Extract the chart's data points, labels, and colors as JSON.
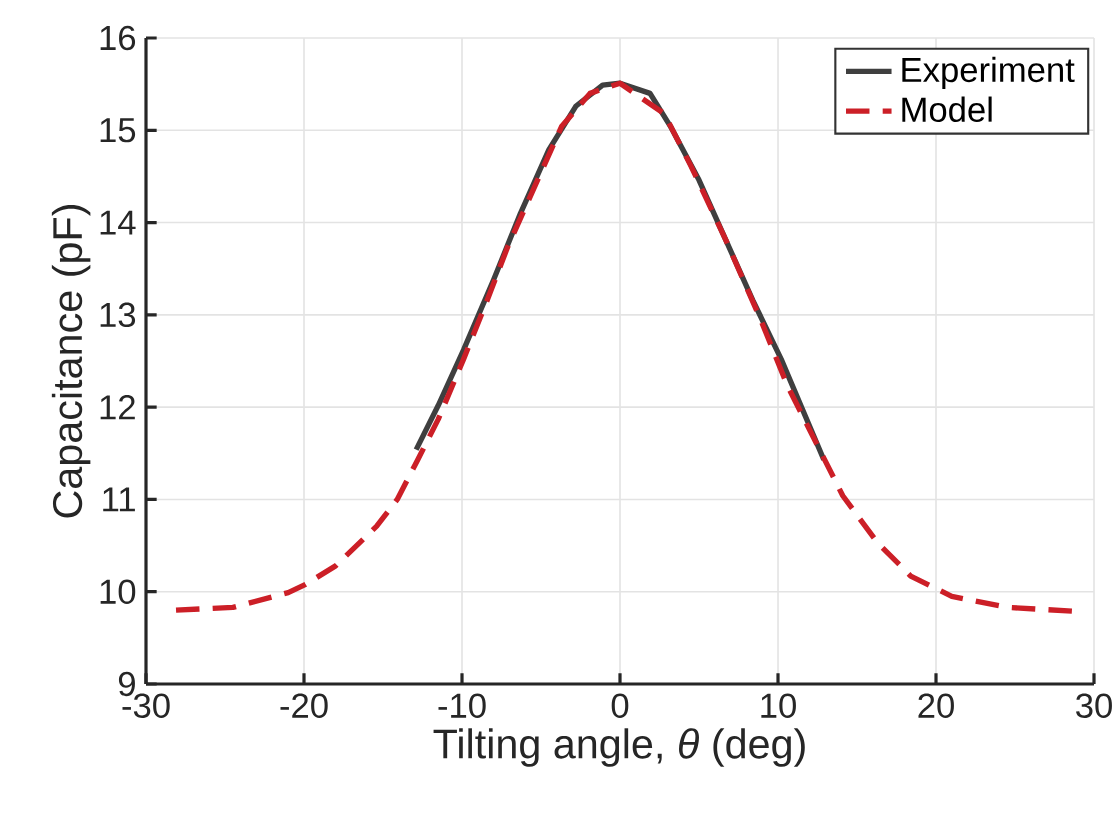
{
  "chart_data": {
    "type": "line",
    "xlabel": "Tilting angle, *θ* (deg)",
    "ylabel": "Capacitance (pF)",
    "xlim": [
      -30,
      30
    ],
    "xticks": [
      -30,
      -20,
      -10,
      0,
      10,
      20,
      30
    ],
    "ylim": [
      9,
      16
    ],
    "yticks": [
      9,
      10,
      11,
      12,
      13,
      14,
      15,
      16
    ],
    "grid": true,
    "legend": "top right",
    "series": [
      {
        "name": "Experiment",
        "color": "#3f3f3f",
        "line_style": "solid",
        "x": [
          -12.9,
          -11.5,
          -9.9,
          -8.0,
          -6.3,
          -4.5,
          -2.8,
          -1.1,
          0,
          1.9,
          3.2,
          5.0,
          6.7,
          8.4,
          10.2,
          12.9
        ],
        "values": [
          11.54,
          12.02,
          12.62,
          13.38,
          14.1,
          14.79,
          15.26,
          15.49,
          15.51,
          15.4,
          15.04,
          14.46,
          13.81,
          13.16,
          12.52,
          11.43
        ]
      },
      {
        "name": "Model",
        "color": "#cc1f27",
        "line_style": "dashed",
        "x": [
          -28.1,
          -24.5,
          -21,
          -19.9,
          -18,
          -15.4,
          -14.1,
          -12.8,
          -11.5,
          -9.9,
          -8.4,
          -7.1,
          -5.4,
          -3.7,
          -1.9,
          0,
          2.8,
          4.5,
          6.7,
          8.9,
          10.6,
          14.1,
          16.3,
          18.4,
          21.0,
          24.5,
          28.6
        ],
        "values": [
          9.8,
          9.83,
          9.99,
          10.08,
          10.28,
          10.71,
          11.0,
          11.43,
          11.87,
          12.52,
          13.16,
          13.74,
          14.39,
          15.04,
          15.4,
          15.51,
          15.18,
          14.61,
          13.81,
          12.95,
          12.23,
          11.04,
          10.53,
          10.17,
          9.95,
          9.83,
          9.79
        ]
      }
    ]
  }
}
